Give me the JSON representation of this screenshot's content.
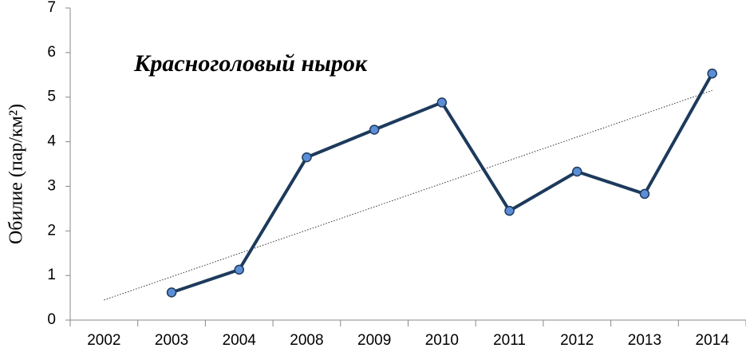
{
  "chart_data": {
    "type": "line",
    "title": "Красноголовый нырок",
    "y_label": "Обилие (пар/км²)",
    "categories": [
      "2002",
      "2003",
      "2004",
      "2008",
      "2009",
      "2010",
      "2011",
      "2012",
      "2013",
      "2014"
    ],
    "values": [
      null,
      0.62,
      1.13,
      3.65,
      4.27,
      4.88,
      2.45,
      3.33,
      2.83,
      5.53
    ],
    "color": "#1d3a5c",
    "marker_color": "#5b8ed6",
    "trendline": [
      0.45,
      5.15
    ],
    "ylim": [
      0,
      7
    ],
    "yticks": [
      0,
      1,
      2,
      3,
      4,
      5,
      6,
      7
    ]
  }
}
